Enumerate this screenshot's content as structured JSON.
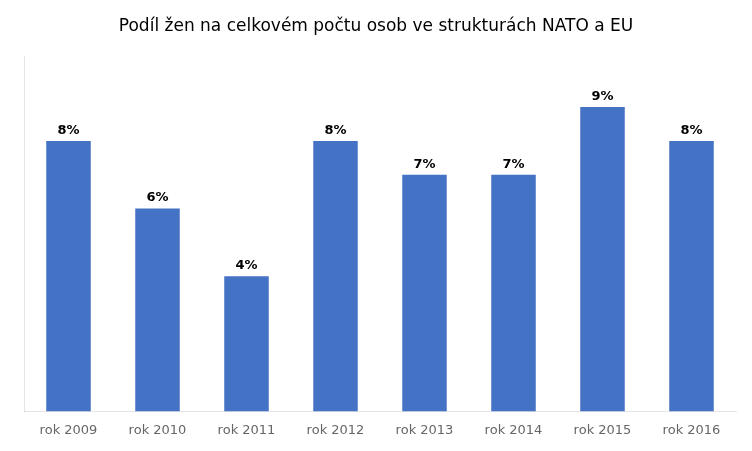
{
  "chart_data": {
    "type": "bar",
    "title": "Podíl žen na celkovém počtu osob ve strukturách NATO a EU",
    "categories": [
      "rok 2009",
      "rok 2010",
      "rok 2011",
      "rok 2012",
      "rok 2013",
      "rok 2014",
      "rok 2015",
      "rok 2016"
    ],
    "values": [
      8,
      6,
      4,
      8,
      7,
      7,
      9,
      8
    ],
    "value_labels": [
      "8%",
      "6%",
      "4%",
      "8%",
      "7%",
      "7%",
      "9%",
      "8%"
    ],
    "data_labels": true,
    "color": "#4472C4",
    "ylim": [
      0,
      10.5
    ],
    "tick_labels": "x",
    "grid": false
  }
}
